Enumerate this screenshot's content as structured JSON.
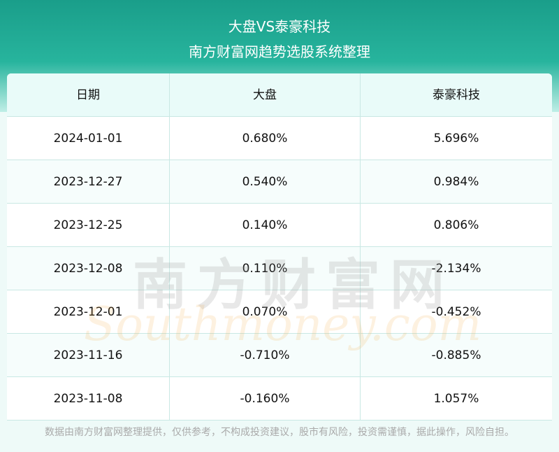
{
  "header": {
    "title": "大盘VS泰豪科技",
    "subtitle": "南方财富网趋势选股系统整理"
  },
  "table": {
    "columns": [
      "日期",
      "大盘",
      "泰豪科技"
    ],
    "rows": [
      [
        "2024-01-01",
        "0.680%",
        "5.696%"
      ],
      [
        "2023-12-27",
        "0.540%",
        "0.984%"
      ],
      [
        "2023-12-25",
        "0.140%",
        "0.806%"
      ],
      [
        "2023-12-08",
        "0.110%",
        "-2.134%"
      ],
      [
        "2023-12-01",
        "0.070%",
        "-0.452%"
      ],
      [
        "2023-11-16",
        "-0.710%",
        "-0.885%"
      ],
      [
        "2023-11-08",
        "-0.160%",
        "1.057%"
      ]
    ]
  },
  "watermark": {
    "cn": "南方财富网",
    "en": "Southmoney.com"
  },
  "footer": {
    "disclaimer": "数据由南方财富网整理提供，仅供参考，不构成投资建议，股市有风险，投资需谨慎，据此操作，风险自担。"
  }
}
